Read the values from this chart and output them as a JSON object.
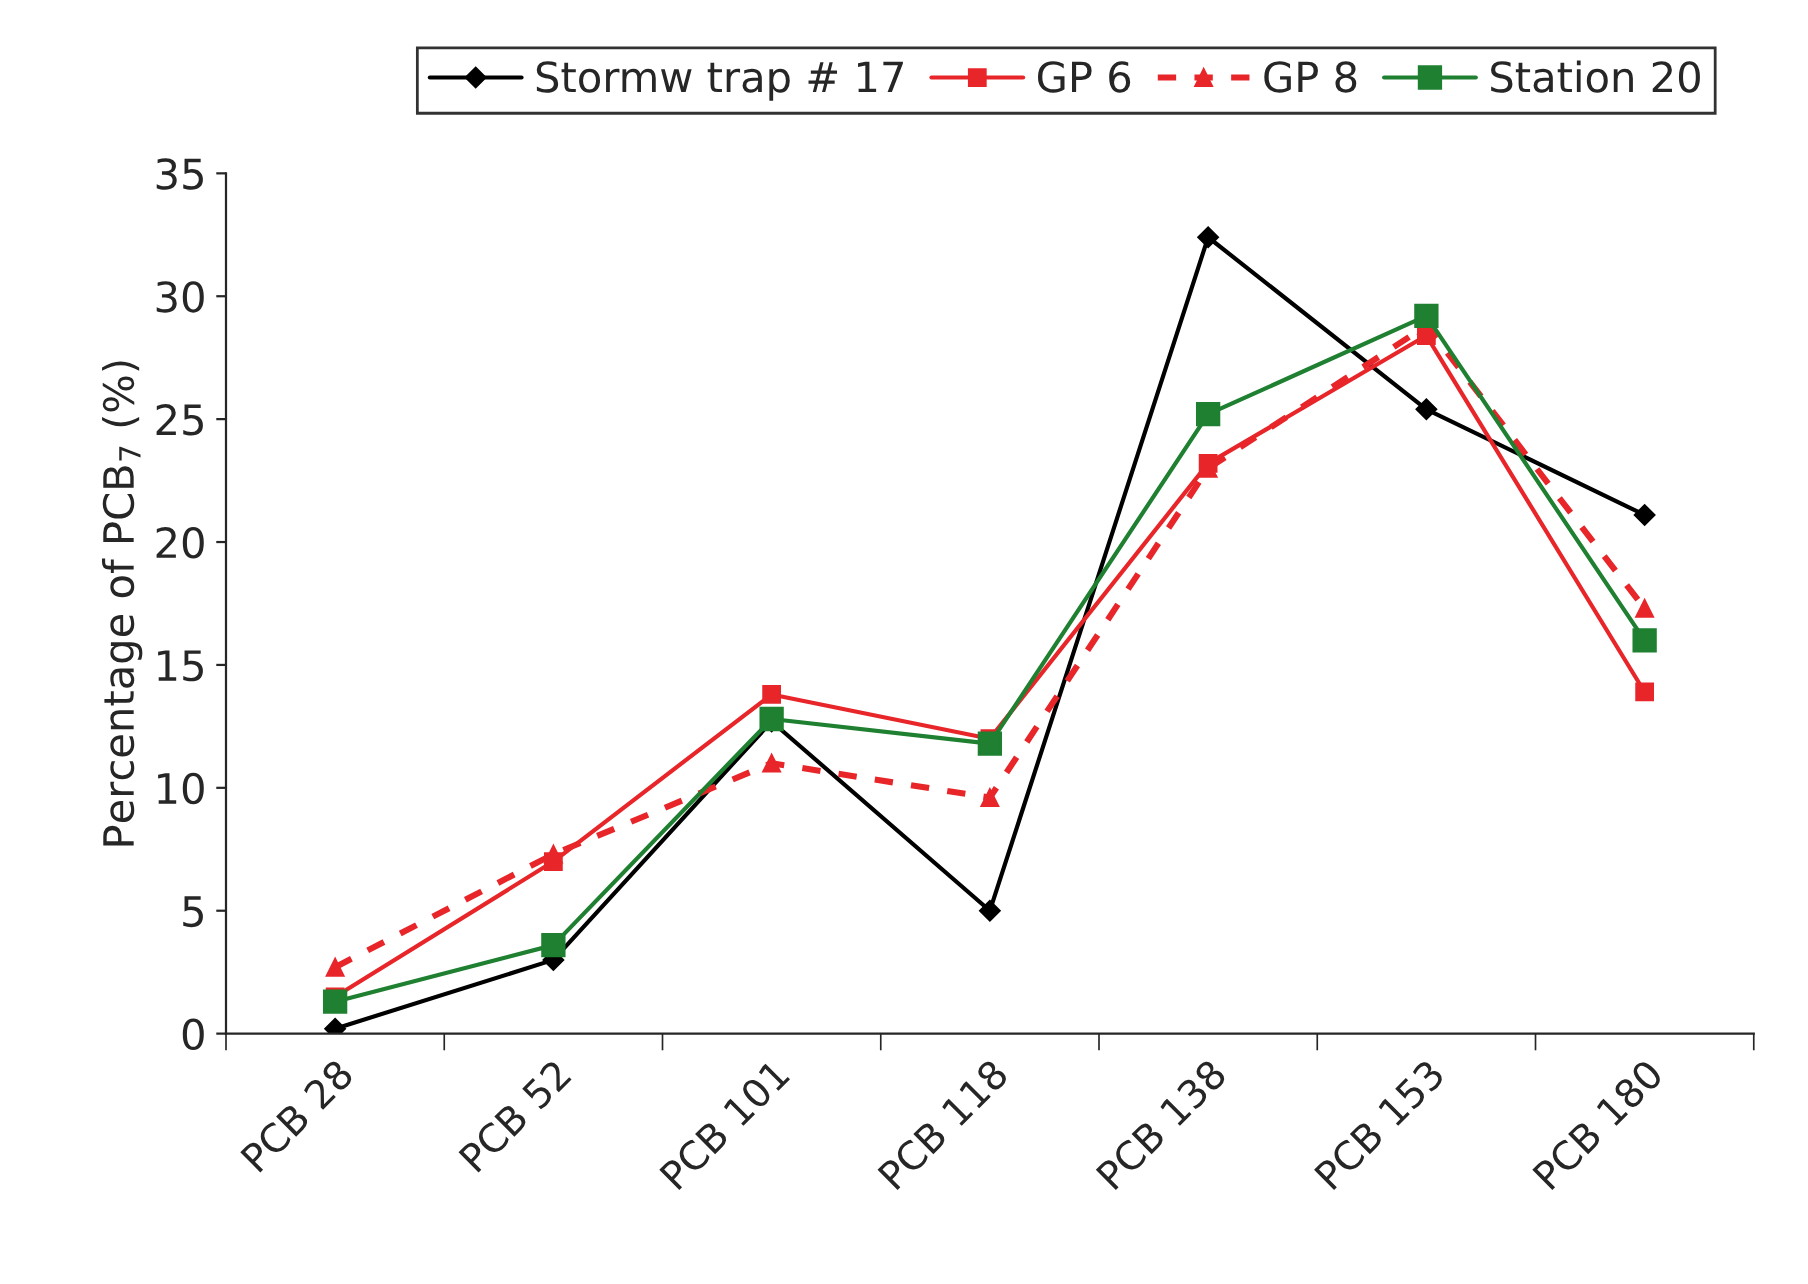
{
  "chart_data": {
    "type": "line",
    "ylabel": "Percentage of PCB$_{7}$ (%)",
    "categories": [
      "PCB 28",
      "PCB 52",
      "PCB 101",
      "PCB 118",
      "PCB 138",
      "PCB 153",
      "PCB 180"
    ],
    "series": [
      {
        "name": "Stormw trap # 17",
        "color": "#000000",
        "marker": "diamond",
        "line_style": "solid",
        "values": [
          0.2,
          3.0,
          12.7,
          5.0,
          32.4,
          25.4,
          21.1
        ]
      },
      {
        "name": "GP 6",
        "color": "#e8262a",
        "marker": "square",
        "line_style": "solid",
        "values": [
          1.5,
          7.0,
          13.8,
          12.0,
          23.2,
          28.4,
          13.9
        ]
      },
      {
        "name": "GP 8",
        "color": "#e8262a",
        "marker": "triangle",
        "line_style": "dashed",
        "values": [
          2.7,
          7.3,
          11.0,
          9.6,
          23.0,
          28.8,
          17.3
        ]
      },
      {
        "name": "Station 20",
        "color": "#1e8030",
        "marker": "square",
        "line_style": "solid",
        "values": [
          1.3,
          3.6,
          12.8,
          11.8,
          25.2,
          29.2,
          16.0
        ]
      }
    ],
    "ylim": [
      0,
      35
    ],
    "yticks": [
      0,
      5,
      10,
      15,
      20,
      25,
      30,
      35
    ],
    "grid": false,
    "legend": "top"
  }
}
